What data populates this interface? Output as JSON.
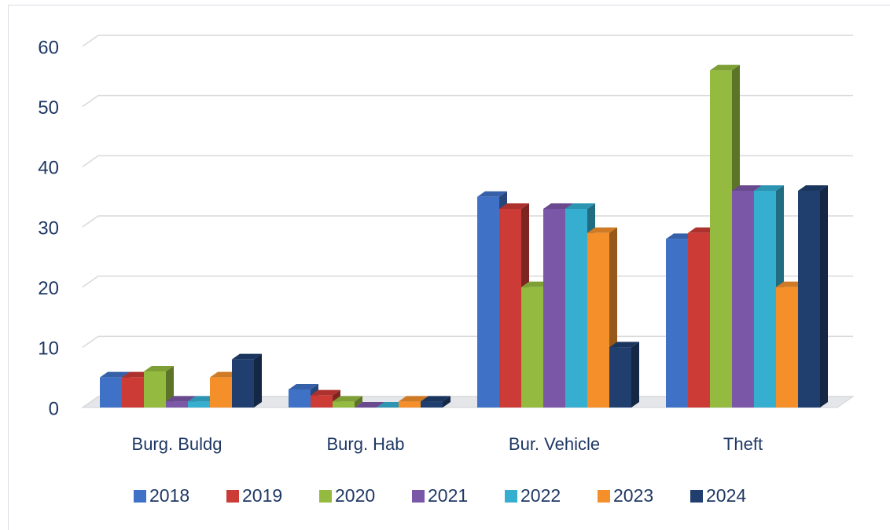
{
  "chart_data": {
    "type": "bar3d",
    "categories": [
      "Burg. Buldg",
      "Burg. Hab",
      "Bur. Vehicle",
      "Theft"
    ],
    "series": [
      {
        "name": "2018",
        "color": "#3f72c6",
        "values": [
          5,
          3,
          35,
          28
        ]
      },
      {
        "name": "2019",
        "color": "#cc3b36",
        "values": [
          5,
          2,
          33,
          29
        ]
      },
      {
        "name": "2020",
        "color": "#94bb3f",
        "values": [
          6,
          1,
          20,
          56
        ]
      },
      {
        "name": "2021",
        "color": "#7b57a8",
        "values": [
          1,
          0,
          33,
          36
        ]
      },
      {
        "name": "2022",
        "color": "#35aed0",
        "values": [
          1,
          0,
          33,
          36
        ]
      },
      {
        "name": "2023",
        "color": "#f48f2a",
        "values": [
          5,
          1,
          29,
          20
        ]
      },
      {
        "name": "2024",
        "color": "#203f6f",
        "values": [
          8,
          1,
          10,
          36
        ]
      }
    ],
    "ylim": [
      0,
      60
    ],
    "yticks": [
      0,
      10,
      20,
      30,
      40,
      50,
      60
    ],
    "grid": true,
    "legend": "bottom"
  }
}
